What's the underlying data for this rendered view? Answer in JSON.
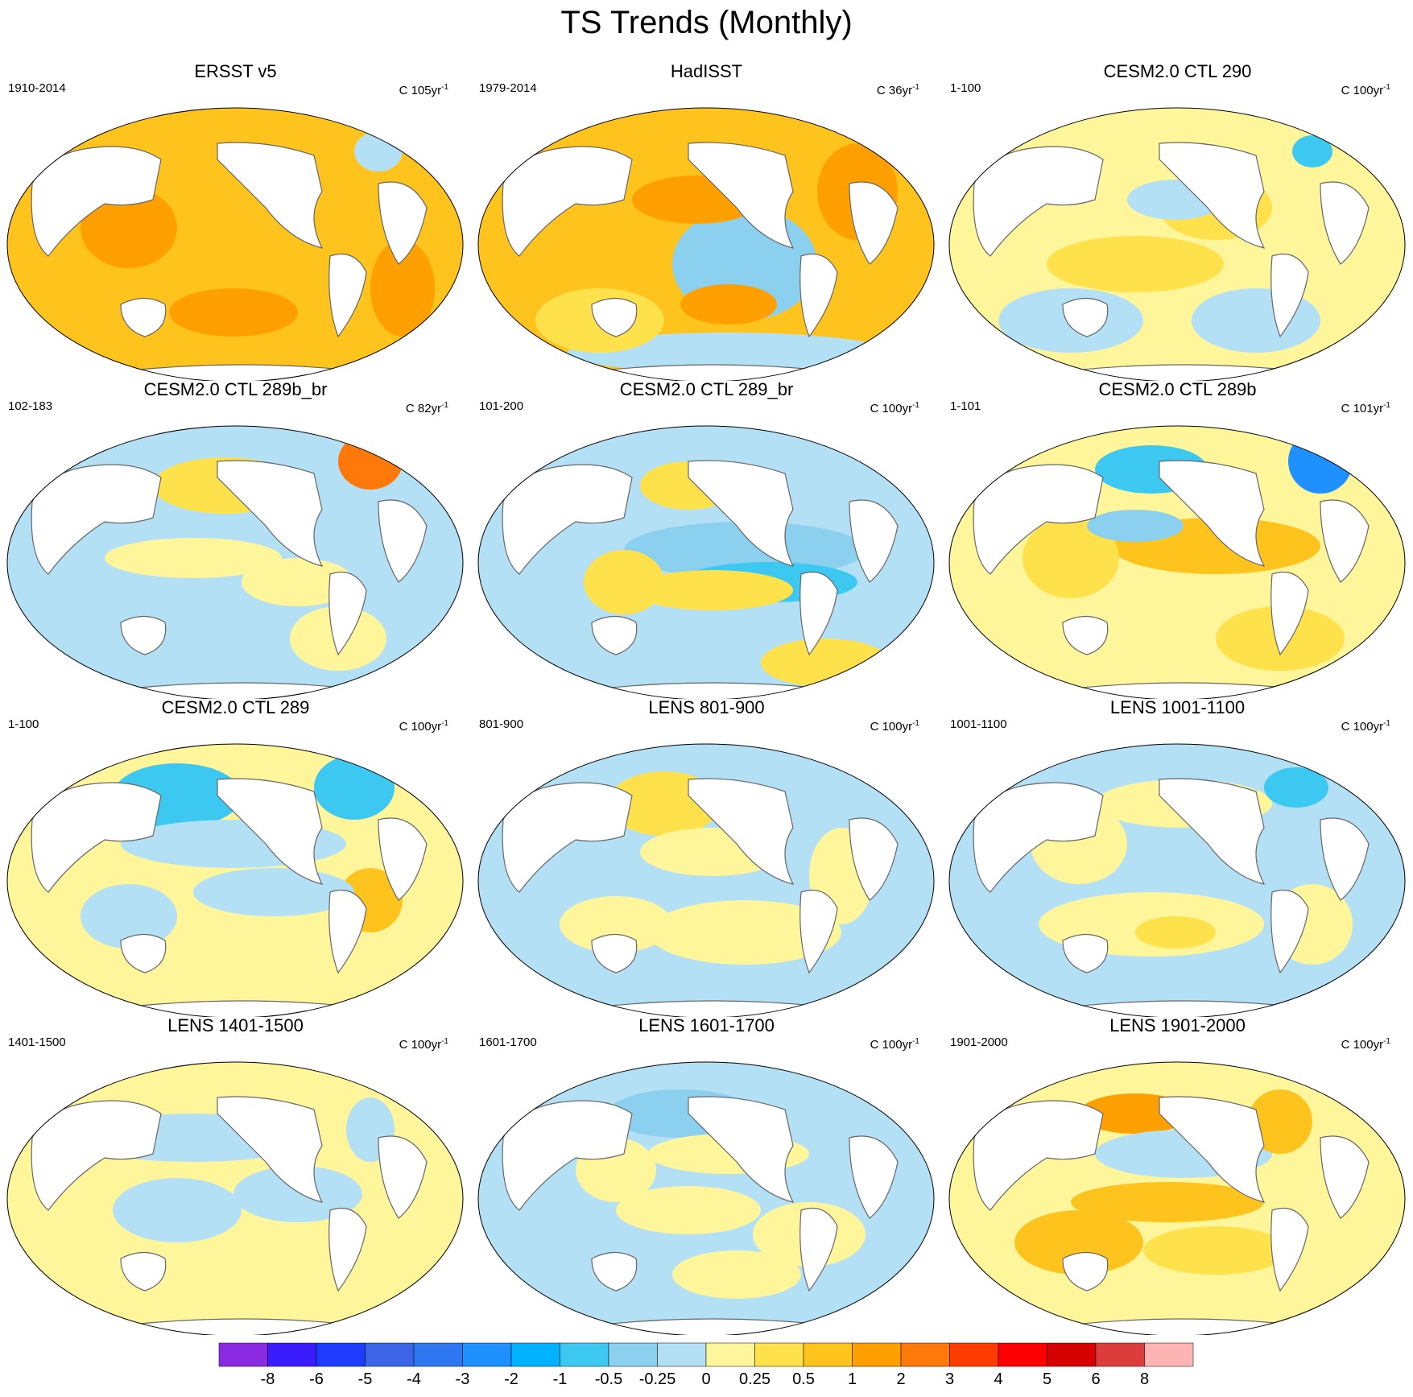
{
  "title": "TS Trends (Monthly)",
  "panels": [
    {
      "title": "ERSST v5",
      "period": "1910-2014",
      "units_prefix": "C 105yr",
      "units_sup": "-1",
      "style": "warm"
    },
    {
      "title": "HadISST",
      "period": "1979-2014",
      "units_prefix": "C 36yr",
      "units_sup": "-1",
      "style": "hadisst"
    },
    {
      "title": "CESM2.0 CTL 290",
      "period": "1-100",
      "units_prefix": "C 100yr",
      "units_sup": "-1",
      "style": "mixA"
    },
    {
      "title": "CESM2.0 CTL 289b_br",
      "period": "102-183",
      "units_prefix": "C 82yr",
      "units_sup": "-1",
      "style": "mixB"
    },
    {
      "title": "CESM2.0 CTL 289_br",
      "period": "101-200",
      "units_prefix": "C 100yr",
      "units_sup": "-1",
      "style": "cool"
    },
    {
      "title": "CESM2.0 CTL 289b",
      "period": "1-101",
      "units_prefix": "C 101yr",
      "units_sup": "-1",
      "style": "elnino"
    },
    {
      "title": "CESM2.0 CTL 289",
      "period": "1-100",
      "units_prefix": "C 100yr",
      "units_sup": "-1",
      "style": "mixC"
    },
    {
      "title": "LENS 801-900",
      "period": "801-900",
      "units_prefix": "C 100yr",
      "units_sup": "-1",
      "style": "mixD"
    },
    {
      "title": "LENS 1001-1100",
      "period": "1001-1100",
      "units_prefix": "C 100yr",
      "units_sup": "-1",
      "style": "mixE"
    },
    {
      "title": "LENS 1401-1500",
      "period": "1401-1500",
      "units_prefix": "C 100yr",
      "units_sup": "-1",
      "style": "mixF"
    },
    {
      "title": "LENS 1601-1700",
      "period": "1601-1700",
      "units_prefix": "C 100yr",
      "units_sup": "-1",
      "style": "mixG"
    },
    {
      "title": "LENS 1901-2000",
      "period": "1901-2000",
      "units_prefix": "C 100yr",
      "units_sup": "-1",
      "style": "mixH"
    }
  ],
  "colorbar": {
    "colors": [
      "#8a2be2",
      "#3b1cff",
      "#1e3cff",
      "#3c64e6",
      "#2d78f0",
      "#1e90ff",
      "#00b2ff",
      "#3cc8f0",
      "#8cd0f0",
      "#b4e0f5",
      "#fff59b",
      "#ffe14b",
      "#ffc31e",
      "#ffa000",
      "#ff780a",
      "#ff3c00",
      "#ff0000",
      "#d70000",
      "#dc3c3c",
      "#ffb4b4"
    ],
    "labels": [
      "-8",
      "-6",
      "-5",
      "-4",
      "-3",
      "-2",
      "-1",
      "-0.5",
      "-0.25",
      "0",
      "0.25",
      "0.5",
      "1",
      "2",
      "3",
      "4",
      "5",
      "6",
      "8"
    ]
  }
}
